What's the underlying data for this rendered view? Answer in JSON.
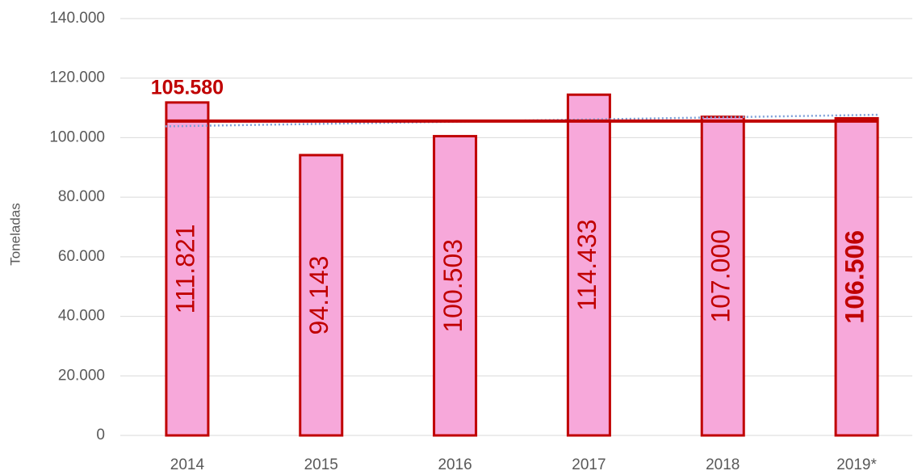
{
  "chart_data": {
    "type": "bar",
    "y_label": "Toneladas",
    "categories": [
      "2014",
      "2015",
      "2016",
      "2017",
      "2018",
      "2019*"
    ],
    "values": [
      111821,
      94143,
      100503,
      114433,
      107000,
      106506
    ],
    "value_labels": [
      "111.821",
      "94.143",
      "100.503",
      "114.433",
      "107.000",
      "106.506"
    ],
    "bold_value_label": [
      false,
      false,
      false,
      false,
      false,
      true
    ],
    "color": "#f7a8da",
    "edge_color": "#c00000",
    "ylim": [
      0,
      140000
    ],
    "yticks": [
      0,
      {
        "value": 20000,
        "label": "20.000"
      },
      {
        "value": 40000,
        "label": "40.000"
      },
      {
        "value": 60000,
        "label": "60.000"
      },
      {
        "value": 80000,
        "label": "80.000"
      },
      {
        "value": 100000,
        "label": "100.000"
      },
      {
        "value": 120000,
        "label": "120.000"
      },
      {
        "value": 140000,
        "label": "140.000"
      }
    ],
    "grid": true,
    "average_line": {
      "value": 105580,
      "label": "105.580",
      "color": "#c00000"
    },
    "trend_line": {
      "values": [
        103800,
        107700
      ],
      "color": "#7fa0d8"
    }
  }
}
